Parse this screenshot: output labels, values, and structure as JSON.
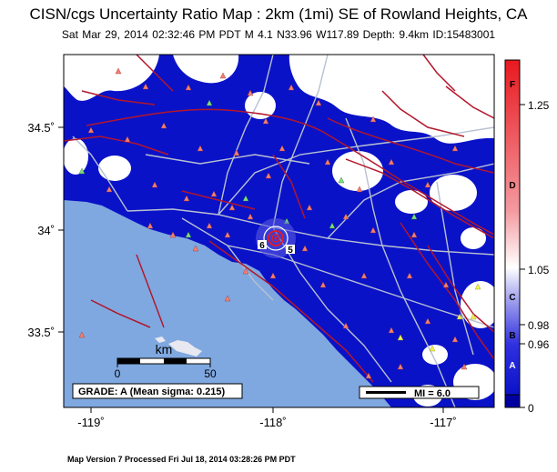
{
  "header": {
    "title": "CISN/cgs Uncertainty Ratio Map : 2km (1mi) SE of Rowland Heights, CA",
    "subtitle": "Sat Mar 29, 2014 02:32:46 PM PDT   M 4.1   N33.96 W117.89   Depth: 9.4km   ID:15483001"
  },
  "footer": {
    "text": "Map Version 7 Processed Fri Jul 18, 2014 03:28:26 PM PDT"
  },
  "map": {
    "lat_ticks": [
      "34.5˚",
      "34˚",
      "33.5˚"
    ],
    "lon_ticks": [
      "-119˚",
      "-118˚",
      "-117˚"
    ],
    "scalebar": {
      "unit": "km",
      "start": "0",
      "end": "50"
    },
    "grade_box": "GRADE: A (Mean sigma: 0.215)",
    "mi_legend": "MI = 6.0",
    "epicenter_labels": [
      "6",
      "5"
    ],
    "colors": {
      "ocean": "#7fa8e0",
      "uncertainty_low": "#0a12c8",
      "faults": "#b3162a",
      "roads": "#b8c0d0",
      "stations": "#f08070"
    }
  },
  "colorbar": {
    "ratio_labels": [
      "1.25",
      "1.05",
      "0.98",
      "0.96",
      "0"
    ],
    "grade_labels": [
      "F",
      "D",
      "C",
      "B",
      "A"
    ],
    "colors": [
      "#e8191f",
      "#ffffff",
      "#1414d8",
      "#0000a0"
    ]
  }
}
